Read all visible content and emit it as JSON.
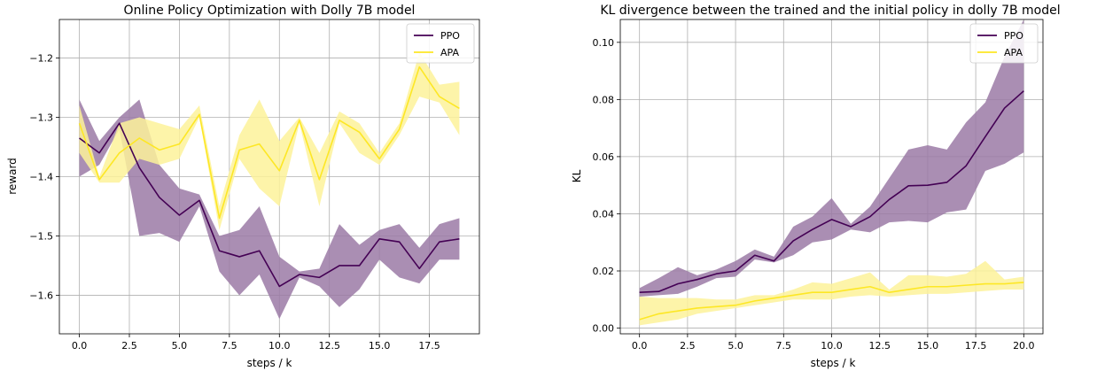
{
  "chart_data": [
    {
      "type": "line",
      "title": "Online Policy Optimization with Dolly 7B model",
      "xlabel": "steps / k",
      "ylabel": "reward",
      "xlim": [
        -1,
        20
      ],
      "ylim": [
        -1.665,
        -1.135
      ],
      "xticks": [
        0,
        2.5,
        5,
        7.5,
        10,
        12.5,
        15,
        17.5
      ],
      "xtick_labels": [
        "0.0",
        "2.5",
        "5.0",
        "7.5",
        "10.0",
        "12.5",
        "15.0",
        "17.5"
      ],
      "yticks": [
        -1.6,
        -1.5,
        -1.4,
        -1.3,
        -1.2
      ],
      "ytick_labels": [
        "−1.6",
        "−1.5",
        "−1.4",
        "−1.3",
        "−1.2"
      ],
      "grid": true,
      "legend_position": "top-right",
      "x": [
        0,
        1,
        2,
        3,
        4,
        5,
        6,
        7,
        8,
        9,
        10,
        11,
        12,
        13,
        14,
        15,
        16,
        17,
        18,
        19
      ],
      "series": [
        {
          "name": "PPO",
          "color": "#440154",
          "band_color": "#9b7aa6",
          "values": [
            -1.335,
            -1.36,
            -1.31,
            -1.385,
            -1.435,
            -1.465,
            -1.44,
            -1.525,
            -1.535,
            -1.525,
            -1.585,
            -1.565,
            -1.57,
            -1.55,
            -1.55,
            -1.505,
            -1.51,
            -1.555,
            -1.51,
            -1.505
          ],
          "lower": [
            -1.4,
            -1.38,
            -1.32,
            -1.5,
            -1.495,
            -1.51,
            -1.45,
            -1.56,
            -1.6,
            -1.565,
            -1.64,
            -1.57,
            -1.585,
            -1.62,
            -1.59,
            -1.54,
            -1.57,
            -1.58,
            -1.54,
            -1.54
          ],
          "upper": [
            -1.27,
            -1.34,
            -1.3,
            -1.27,
            -1.38,
            -1.42,
            -1.43,
            -1.5,
            -1.49,
            -1.45,
            -1.535,
            -1.56,
            -1.555,
            -1.48,
            -1.515,
            -1.49,
            -1.48,
            -1.52,
            -1.48,
            -1.47
          ]
        },
        {
          "name": "APA",
          "color": "#fde725",
          "band_color": "#fdf29a",
          "values": [
            -1.31,
            -1.405,
            -1.36,
            -1.335,
            -1.355,
            -1.345,
            -1.295,
            -1.47,
            -1.355,
            -1.345,
            -1.39,
            -1.305,
            -1.405,
            -1.305,
            -1.325,
            -1.37,
            -1.32,
            -1.215,
            -1.265,
            -1.285
          ],
          "lower": [
            -1.36,
            -1.41,
            -1.41,
            -1.37,
            -1.38,
            -1.37,
            -1.3,
            -1.49,
            -1.37,
            -1.42,
            -1.45,
            -1.31,
            -1.45,
            -1.31,
            -1.36,
            -1.38,
            -1.33,
            -1.265,
            -1.275,
            -1.33
          ],
          "upper": [
            -1.28,
            -1.4,
            -1.31,
            -1.3,
            -1.31,
            -1.32,
            -1.28,
            -1.45,
            -1.33,
            -1.27,
            -1.34,
            -1.3,
            -1.36,
            -1.29,
            -1.31,
            -1.36,
            -1.31,
            -1.19,
            -1.245,
            -1.24
          ]
        }
      ]
    },
    {
      "type": "line",
      "title": "KL divergence between the trained and the initial policy in dolly 7B model",
      "xlabel": "steps / k",
      "ylabel": "KL",
      "xlim": [
        -1,
        21
      ],
      "ylim": [
        -0.002,
        0.108
      ],
      "xticks": [
        0,
        2.5,
        5,
        7.5,
        10,
        12.5,
        15,
        17.5,
        20
      ],
      "xtick_labels": [
        "0.0",
        "2.5",
        "5.0",
        "7.5",
        "10.0",
        "12.5",
        "15.0",
        "17.5",
        "20.0"
      ],
      "yticks": [
        0,
        0.02,
        0.04,
        0.06,
        0.08,
        0.1
      ],
      "ytick_labels": [
        "0.00",
        "0.02",
        "0.04",
        "0.06",
        "0.08",
        "0.10"
      ],
      "grid": true,
      "legend_position": "top-right",
      "x": [
        0,
        1,
        2,
        3,
        4,
        5,
        6,
        7,
        8,
        9,
        10,
        11,
        12,
        13,
        14,
        15,
        16,
        17,
        18,
        19,
        20
      ],
      "series": [
        {
          "name": "PPO",
          "color": "#440154",
          "band_color": "#9b7aa6",
          "values": [
            0.0125,
            0.0128,
            0.0155,
            0.017,
            0.019,
            0.02,
            0.0255,
            0.0235,
            0.0305,
            0.0345,
            0.038,
            0.0355,
            0.039,
            0.045,
            0.0498,
            0.05,
            0.051,
            0.0568,
            0.067,
            0.077,
            0.083
          ],
          "lower": [
            0.011,
            0.0115,
            0.012,
            0.0145,
            0.0175,
            0.018,
            0.024,
            0.023,
            0.0255,
            0.03,
            0.031,
            0.0345,
            0.0335,
            0.037,
            0.0375,
            0.037,
            0.0405,
            0.0415,
            0.055,
            0.0575,
            0.0615
          ],
          "upper": [
            0.014,
            0.0175,
            0.0213,
            0.0185,
            0.0205,
            0.0235,
            0.0275,
            0.025,
            0.0355,
            0.039,
            0.0455,
            0.0365,
            0.0425,
            0.0525,
            0.0625,
            0.064,
            0.0625,
            0.072,
            0.079,
            0.095,
            0.108
          ]
        },
        {
          "name": "APA",
          "color": "#fde725",
          "band_color": "#fdf29a",
          "values": [
            0.003,
            0.005,
            0.006,
            0.007,
            0.0075,
            0.008,
            0.0095,
            0.0105,
            0.0115,
            0.0125,
            0.0125,
            0.0135,
            0.0145,
            0.0125,
            0.0135,
            0.0145,
            0.0145,
            0.015,
            0.0155,
            0.0155,
            0.016
          ],
          "lower": [
            0.001,
            0.002,
            0.003,
            0.005,
            0.006,
            0.007,
            0.008,
            0.009,
            0.01,
            0.01,
            0.01,
            0.011,
            0.0115,
            0.011,
            0.0115,
            0.012,
            0.012,
            0.0125,
            0.013,
            0.0135,
            0.0135
          ],
          "upper": [
            0.011,
            0.0105,
            0.0105,
            0.0105,
            0.01,
            0.01,
            0.0115,
            0.0115,
            0.0135,
            0.016,
            0.0155,
            0.0175,
            0.0195,
            0.0135,
            0.0185,
            0.0185,
            0.018,
            0.019,
            0.0235,
            0.017,
            0.018
          ]
        }
      ]
    }
  ]
}
